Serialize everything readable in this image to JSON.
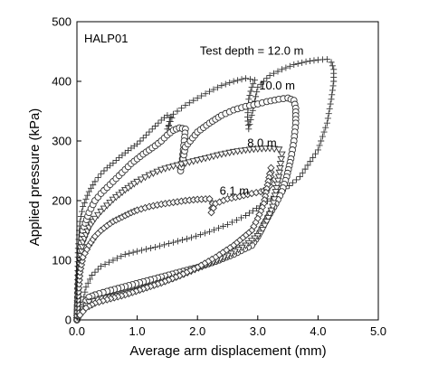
{
  "chart_data": {
    "type": "scatter",
    "title": "",
    "xlabel": "Average arm displacement (mm)",
    "ylabel": "Applied pressure (kPa)",
    "xlim": [
      0,
      5
    ],
    "ylim": [
      0,
      500
    ],
    "xticks": [
      "0.0",
      "1.0",
      "2.0",
      "3.0",
      "4.0",
      "5.0"
    ],
    "yticks": [
      "0",
      "100",
      "200",
      "300",
      "400",
      "500"
    ],
    "grid": false,
    "legend": "none",
    "test_id": "HALP01",
    "annotations": [
      {
        "text": "Test depth = 12.0 m",
        "x": 2.9,
        "y": 445
      },
      {
        "text": "10.0 m",
        "x": 3.32,
        "y": 386
      },
      {
        "text": "8.0 m",
        "x": 3.07,
        "y": 290
      },
      {
        "text": "6.1 m",
        "x": 2.61,
        "y": 210
      }
    ],
    "series": [
      {
        "name": "12.0 m",
        "marker": "plus",
        "points": [
          [
            0.0,
            0
          ],
          [
            0.02,
            120
          ],
          [
            0.05,
            165
          ],
          [
            0.1,
            190
          ],
          [
            0.2,
            215
          ],
          [
            0.3,
            232
          ],
          [
            0.4,
            245
          ],
          [
            0.5,
            255
          ],
          [
            0.6,
            263
          ],
          [
            0.7,
            272
          ],
          [
            0.8,
            280
          ],
          [
            0.9,
            288
          ],
          [
            1.0,
            295
          ],
          [
            1.1,
            305
          ],
          [
            1.2,
            315
          ],
          [
            1.3,
            325
          ],
          [
            1.4,
            335
          ],
          [
            1.5,
            343
          ],
          [
            1.55,
            340
          ],
          [
            1.52,
            325
          ],
          [
            1.5,
            320
          ],
          [
            1.6,
            345
          ],
          [
            1.8,
            360
          ],
          [
            2.0,
            372
          ],
          [
            2.2,
            383
          ],
          [
            2.4,
            393
          ],
          [
            2.6,
            400
          ],
          [
            2.8,
            405
          ],
          [
            2.95,
            402
          ],
          [
            2.9,
            390
          ],
          [
            2.85,
            370
          ],
          [
            2.83,
            340
          ],
          [
            2.85,
            320
          ],
          [
            3.0,
            390
          ],
          [
            3.2,
            410
          ],
          [
            3.4,
            420
          ],
          [
            3.6,
            428
          ],
          [
            3.8,
            433
          ],
          [
            4.0,
            436
          ],
          [
            4.15,
            437
          ],
          [
            4.22,
            432
          ],
          [
            4.26,
            420
          ],
          [
            4.26,
            400
          ],
          [
            4.22,
            370
          ],
          [
            4.15,
            330
          ],
          [
            4.0,
            285
          ],
          [
            3.7,
            240
          ],
          [
            3.4,
            215
          ],
          [
            3.1,
            195
          ],
          [
            2.8,
            175
          ],
          [
            2.5,
            160
          ],
          [
            2.2,
            148
          ],
          [
            1.9,
            138
          ],
          [
            1.6,
            130
          ],
          [
            1.3,
            122
          ],
          [
            1.0,
            115
          ],
          [
            0.8,
            110
          ],
          [
            0.6,
            100
          ],
          [
            0.4,
            90
          ],
          [
            0.25,
            75
          ],
          [
            0.15,
            55
          ],
          [
            0.1,
            30
          ],
          [
            0.05,
            10
          ],
          [
            0.0,
            0
          ]
        ]
      },
      {
        "name": "10.0 m",
        "marker": "circle",
        "points": [
          [
            0.0,
            0
          ],
          [
            0.01,
            30
          ],
          [
            0.02,
            60
          ],
          [
            0.05,
            110
          ],
          [
            0.1,
            150
          ],
          [
            0.2,
            180
          ],
          [
            0.3,
            200
          ],
          [
            0.4,
            212
          ],
          [
            0.5,
            222
          ],
          [
            0.6,
            232
          ],
          [
            0.7,
            242
          ],
          [
            0.8,
            252
          ],
          [
            0.9,
            262
          ],
          [
            1.0,
            270
          ],
          [
            1.1,
            278
          ],
          [
            1.2,
            285
          ],
          [
            1.3,
            292
          ],
          [
            1.4,
            300
          ],
          [
            1.5,
            310
          ],
          [
            1.6,
            318
          ],
          [
            1.7,
            322
          ],
          [
            1.8,
            320
          ],
          [
            1.78,
            300
          ],
          [
            1.75,
            270
          ],
          [
            1.72,
            250
          ],
          [
            1.8,
            290
          ],
          [
            2.0,
            315
          ],
          [
            2.2,
            330
          ],
          [
            2.4,
            343
          ],
          [
            2.6,
            352
          ],
          [
            2.8,
            358
          ],
          [
            3.0,
            362
          ],
          [
            3.15,
            366
          ],
          [
            3.35,
            370
          ],
          [
            3.5,
            372
          ],
          [
            3.6,
            368
          ],
          [
            3.63,
            355
          ],
          [
            3.63,
            330
          ],
          [
            3.6,
            300
          ],
          [
            3.55,
            270
          ],
          [
            3.48,
            240
          ],
          [
            3.4,
            215
          ],
          [
            3.3,
            195
          ],
          [
            3.2,
            178
          ],
          [
            3.1,
            160
          ],
          [
            3.0,
            140
          ],
          [
            2.9,
            125
          ],
          [
            2.6,
            110
          ],
          [
            2.3,
            98
          ],
          [
            2.0,
            88
          ],
          [
            1.7,
            80
          ],
          [
            1.4,
            72
          ],
          [
            1.1,
            64
          ],
          [
            0.8,
            56
          ],
          [
            0.5,
            48
          ],
          [
            0.3,
            42
          ],
          [
            0.2,
            38
          ],
          [
            0.1,
            25
          ],
          [
            0.05,
            15
          ],
          [
            0.02,
            5
          ]
        ]
      },
      {
        "name": "8.0 m",
        "marker": "triangle",
        "points": [
          [
            0.0,
            0
          ],
          [
            0.02,
            50
          ],
          [
            0.05,
            100
          ],
          [
            0.1,
            130
          ],
          [
            0.2,
            155
          ],
          [
            0.3,
            170
          ],
          [
            0.4,
            182
          ],
          [
            0.5,
            192
          ],
          [
            0.6,
            202
          ],
          [
            0.7,
            210
          ],
          [
            0.8,
            218
          ],
          [
            0.9,
            225
          ],
          [
            1.0,
            232
          ],
          [
            1.2,
            243
          ],
          [
            1.4,
            252
          ],
          [
            1.6,
            258
          ],
          [
            1.8,
            263
          ],
          [
            2.0,
            268
          ],
          [
            2.2,
            273
          ],
          [
            2.4,
            278
          ],
          [
            2.6,
            282
          ],
          [
            2.8,
            285
          ],
          [
            3.0,
            287
          ],
          [
            3.2,
            288
          ],
          [
            3.35,
            286
          ],
          [
            3.4,
            278
          ],
          [
            3.38,
            262
          ],
          [
            3.35,
            240
          ],
          [
            3.3,
            215
          ],
          [
            3.25,
            190
          ],
          [
            3.15,
            165
          ],
          [
            3.05,
            145
          ],
          [
            2.8,
            125
          ],
          [
            2.5,
            108
          ],
          [
            2.2,
            95
          ],
          [
            1.9,
            82
          ],
          [
            1.6,
            70
          ],
          [
            1.3,
            60
          ],
          [
            1.0,
            50
          ],
          [
            0.7,
            42
          ],
          [
            0.4,
            36
          ],
          [
            0.2,
            30
          ],
          [
            0.1,
            18
          ],
          [
            0.05,
            10
          ]
        ]
      },
      {
        "name": "6.1 m",
        "marker": "diamond",
        "points": [
          [
            0.0,
            0
          ],
          [
            0.02,
            40
          ],
          [
            0.05,
            80
          ],
          [
            0.1,
            105
          ],
          [
            0.2,
            125
          ],
          [
            0.3,
            140
          ],
          [
            0.4,
            150
          ],
          [
            0.5,
            158
          ],
          [
            0.6,
            165
          ],
          [
            0.7,
            170
          ],
          [
            0.8,
            175
          ],
          [
            0.9,
            180
          ],
          [
            1.0,
            184
          ],
          [
            1.2,
            190
          ],
          [
            1.4,
            194
          ],
          [
            1.6,
            197
          ],
          [
            1.8,
            200
          ],
          [
            2.0,
            202
          ],
          [
            2.2,
            203
          ],
          [
            2.25,
            195
          ],
          [
            2.23,
            180
          ],
          [
            2.3,
            195
          ],
          [
            2.5,
            203
          ],
          [
            2.7,
            207
          ],
          [
            2.9,
            212
          ],
          [
            3.05,
            215
          ],
          [
            3.15,
            218
          ],
          [
            3.2,
            225
          ],
          [
            3.22,
            240
          ],
          [
            3.22,
            255
          ],
          [
            3.2,
            245
          ],
          [
            3.15,
            220
          ],
          [
            3.1,
            195
          ],
          [
            3.0,
            170
          ],
          [
            2.9,
            150
          ],
          [
            2.6,
            125
          ],
          [
            2.3,
            105
          ],
          [
            2.0,
            88
          ],
          [
            1.7,
            74
          ],
          [
            1.4,
            62
          ],
          [
            1.1,
            52
          ],
          [
            0.8,
            42
          ],
          [
            0.5,
            34
          ],
          [
            0.3,
            28
          ],
          [
            0.15,
            20
          ],
          [
            0.05,
            8
          ]
        ]
      }
    ]
  }
}
